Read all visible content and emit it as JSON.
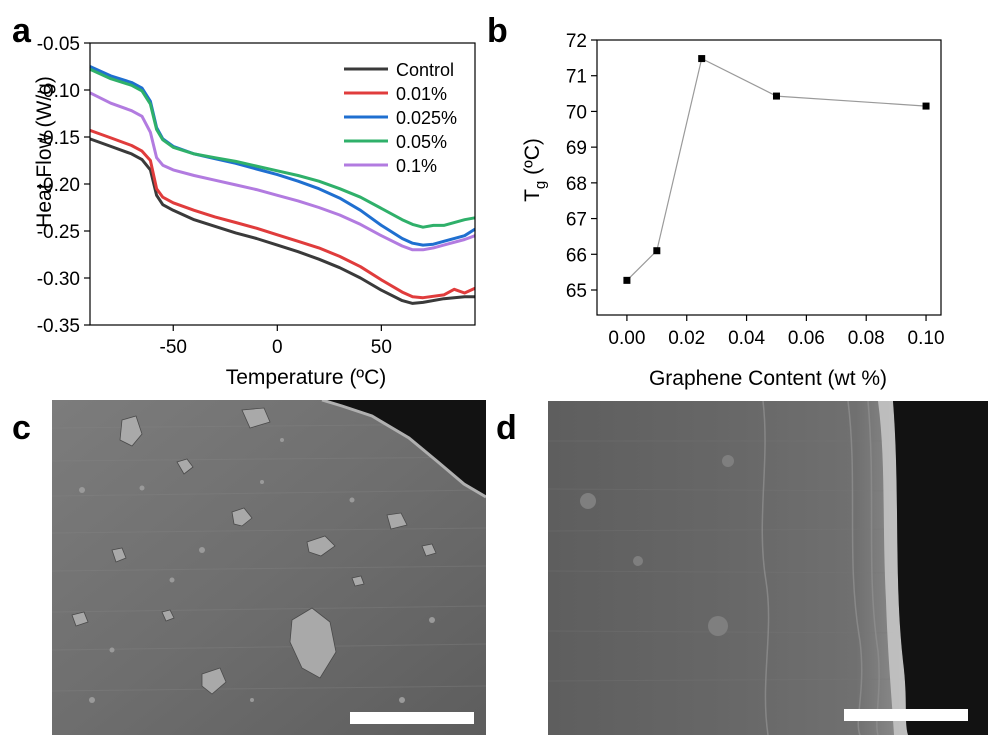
{
  "panels": {
    "a": "a",
    "b": "b",
    "c": "c",
    "d": "d"
  },
  "chart_data": [
    {
      "type": "line",
      "panel": "a",
      "xlabel": "Temperature (ºC)",
      "ylabel": "Heat Flow (W/g)",
      "xlim": [
        -90,
        95
      ],
      "ylim": [
        -0.35,
        -0.05
      ],
      "xticks": [
        -50,
        0,
        50
      ],
      "yticks": [
        -0.05,
        -0.1,
        -0.15,
        -0.2,
        -0.25,
        -0.3,
        -0.35
      ],
      "xtick_labels": [
        "-50",
        "0",
        "50"
      ],
      "ytick_labels": [
        "-0.05",
        "-0.10",
        "-0.15",
        "-0.20",
        "-0.25",
        "-0.30",
        "-0.35"
      ],
      "legend_position": "top-right",
      "series": [
        {
          "name": "Control",
          "color": "#3a3a3a",
          "x": [
            -90,
            -80,
            -70,
            -65,
            -61,
            -58,
            -55,
            -50,
            -40,
            -30,
            -20,
            -10,
            0,
            10,
            20,
            30,
            40,
            50,
            60,
            65,
            70,
            80,
            90,
            95
          ],
          "y": [
            -0.152,
            -0.16,
            -0.168,
            -0.174,
            -0.185,
            -0.212,
            -0.222,
            -0.228,
            -0.238,
            -0.245,
            -0.252,
            -0.258,
            -0.265,
            -0.272,
            -0.28,
            -0.289,
            -0.3,
            -0.313,
            -0.324,
            -0.327,
            -0.326,
            -0.322,
            -0.32,
            -0.32
          ]
        },
        {
          "name": "0.01%",
          "color": "#e03c3c",
          "x": [
            -90,
            -80,
            -70,
            -65,
            -61,
            -58,
            -55,
            -50,
            -40,
            -30,
            -20,
            -10,
            0,
            10,
            20,
            30,
            40,
            50,
            60,
            65,
            70,
            80,
            85,
            90,
            95
          ],
          "y": [
            -0.143,
            -0.151,
            -0.159,
            -0.165,
            -0.175,
            -0.205,
            -0.214,
            -0.22,
            -0.228,
            -0.235,
            -0.241,
            -0.247,
            -0.254,
            -0.261,
            -0.268,
            -0.277,
            -0.288,
            -0.302,
            -0.315,
            -0.32,
            -0.321,
            -0.318,
            -0.312,
            -0.316,
            -0.311
          ]
        },
        {
          "name": "0.025%",
          "color": "#1f6fd0",
          "x": [
            -90,
            -80,
            -70,
            -65,
            -61,
            -58,
            -55,
            -50,
            -40,
            -30,
            -20,
            -10,
            0,
            10,
            20,
            30,
            40,
            50,
            60,
            65,
            70,
            75,
            80,
            90,
            95
          ],
          "y": [
            -0.075,
            -0.085,
            -0.092,
            -0.098,
            -0.112,
            -0.14,
            -0.152,
            -0.16,
            -0.168,
            -0.173,
            -0.178,
            -0.184,
            -0.19,
            -0.197,
            -0.205,
            -0.215,
            -0.228,
            -0.244,
            -0.258,
            -0.263,
            -0.265,
            -0.264,
            -0.261,
            -0.255,
            -0.248
          ]
        },
        {
          "name": "0.05%",
          "color": "#2fb06a",
          "x": [
            -90,
            -80,
            -70,
            -65,
            -61,
            -58,
            -55,
            -50,
            -40,
            -30,
            -20,
            -10,
            0,
            10,
            20,
            30,
            40,
            50,
            60,
            65,
            70,
            75,
            80,
            90,
            95
          ],
          "y": [
            -0.078,
            -0.088,
            -0.095,
            -0.101,
            -0.115,
            -0.142,
            -0.153,
            -0.161,
            -0.168,
            -0.172,
            -0.176,
            -0.181,
            -0.186,
            -0.191,
            -0.197,
            -0.205,
            -0.214,
            -0.226,
            -0.238,
            -0.243,
            -0.246,
            -0.244,
            -0.244,
            -0.238,
            -0.236
          ]
        },
        {
          "name": "0.1%",
          "color": "#b27be0",
          "x": [
            -90,
            -80,
            -70,
            -65,
            -61,
            -58,
            -55,
            -50,
            -40,
            -30,
            -20,
            -10,
            0,
            10,
            20,
            30,
            40,
            50,
            60,
            65,
            70,
            75,
            80,
            90,
            95
          ],
          "y": [
            -0.103,
            -0.114,
            -0.122,
            -0.128,
            -0.145,
            -0.172,
            -0.18,
            -0.185,
            -0.191,
            -0.196,
            -0.201,
            -0.206,
            -0.212,
            -0.218,
            -0.225,
            -0.233,
            -0.243,
            -0.255,
            -0.266,
            -0.27,
            -0.27,
            -0.268,
            -0.265,
            -0.259,
            -0.255
          ]
        }
      ]
    },
    {
      "type": "line",
      "panel": "b",
      "xlabel": "Graphene Content (wt %)",
      "ylabel_main": "T",
      "ylabel_sub": "g",
      "ylabel_unit": " (ºC)",
      "xlim": [
        -0.01,
        0.105
      ],
      "ylim": [
        64.3,
        72.0
      ],
      "xticks": [
        0.0,
        0.02,
        0.04,
        0.06,
        0.08,
        0.1
      ],
      "xtick_labels": [
        "0.00",
        "0.02",
        "0.04",
        "0.06",
        "0.08",
        "0.10"
      ],
      "yticks": [
        65,
        66,
        67,
        68,
        69,
        70,
        71,
        72
      ],
      "ytick_labels": [
        "65",
        "66",
        "67",
        "68",
        "69",
        "70",
        "71",
        "72"
      ],
      "series": [
        {
          "color": "#000000",
          "line_color": "#9a9a9a",
          "x": [
            0.0,
            0.01,
            0.025,
            0.05,
            0.1
          ],
          "y": [
            65.27,
            66.1,
            71.48,
            70.43,
            70.15
          ]
        }
      ]
    }
  ],
  "images": {
    "c": {
      "description_icon": "sem-micrograph-surface-with-particles"
    },
    "d": {
      "description_icon": "sem-micrograph-edge"
    }
  }
}
